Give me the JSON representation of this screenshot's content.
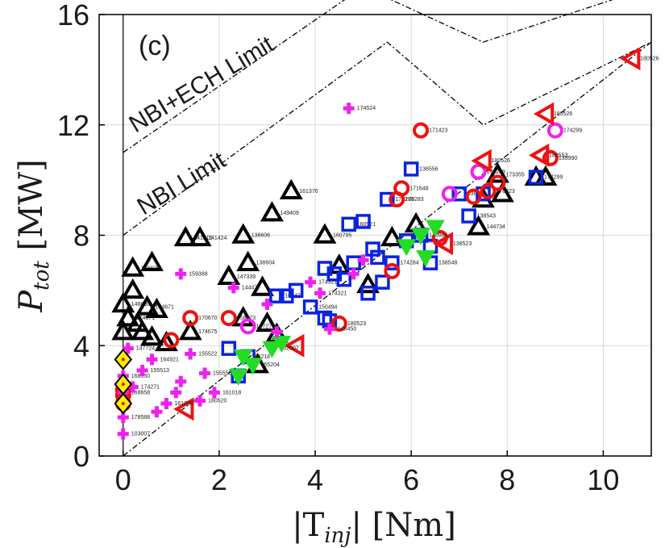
{
  "chart_data": {
    "type": "scatter",
    "panel_label": "(c)",
    "xlabel": {
      "prefix": "|T",
      "sub": "inj",
      "suffix": "| [Nm]"
    },
    "ylabel": {
      "base": "P",
      "sub": "tot",
      "suffix": " [MW]"
    },
    "xlim": [
      -0.5,
      11
    ],
    "ylim": [
      0,
      16
    ],
    "xticks": [
      "0",
      "2",
      "4",
      "6",
      "8",
      "10"
    ],
    "yticks": [
      "0",
      "4",
      "8",
      "12",
      "16"
    ],
    "grid": true,
    "colors": {
      "black": "#000000",
      "blue": "#0a22e0",
      "red": "#ee1111",
      "magenta": "#ee22ee",
      "green": "#22dd22",
      "yellow": "#ffee00"
    },
    "limit_lines": [
      {
        "name": "NBI+ECH Limit",
        "label": "NBI+ECH Limit",
        "points": [
          [
            0,
            11
          ],
          [
            5,
            17
          ],
          [
            7.5,
            15
          ],
          [
            11,
            17
          ]
        ]
      },
      {
        "name": "NBI Limit",
        "label": "NBI Limit",
        "points": [
          [
            0,
            8
          ],
          [
            5.5,
            15
          ],
          [
            7.5,
            12
          ],
          [
            11,
            15
          ]
        ]
      },
      {
        "name": "lower bound",
        "label": "",
        "points": [
          [
            0,
            0
          ],
          [
            11,
            15
          ]
        ]
      }
    ],
    "series": [
      {
        "marker": "triangle-up",
        "color": "black",
        "points": [
          [
            0,
            5.5,
            "148830"
          ],
          [
            0.1,
            5,
            "174671"
          ],
          [
            0,
            4.5,
            ""
          ],
          [
            0.2,
            6,
            ""
          ],
          [
            0.3,
            4.8,
            ""
          ],
          [
            0.4,
            4.5,
            ""
          ],
          [
            0.2,
            6.8,
            "138606"
          ],
          [
            0.5,
            5.4,
            "174671"
          ],
          [
            0.6,
            7,
            ""
          ],
          [
            0.7,
            5.3,
            ""
          ],
          [
            0.6,
            4.3,
            ""
          ],
          [
            0.9,
            4.1,
            ""
          ],
          [
            1.4,
            4.5,
            "174675"
          ],
          [
            1.3,
            7.9,
            "141316"
          ],
          [
            1.6,
            7.9,
            "141424"
          ],
          [
            2.2,
            6.5,
            "147339"
          ],
          [
            2.5,
            8,
            "138606"
          ],
          [
            2.6,
            7,
            "138604"
          ],
          [
            2.9,
            6.1,
            ""
          ],
          [
            2.5,
            5,
            ""
          ],
          [
            3.1,
            8.8,
            "149409"
          ],
          [
            3.5,
            9.6,
            "161376"
          ],
          [
            3.2,
            4.4,
            ""
          ],
          [
            2.8,
            3.3,
            ""
          ],
          [
            3,
            4.8,
            ""
          ],
          [
            4.2,
            8,
            "160795"
          ],
          [
            5.1,
            6.2,
            ""
          ],
          [
            5.6,
            7.9,
            ""
          ],
          [
            6.1,
            8.4,
            ""
          ],
          [
            7.4,
            8.3,
            "144734"
          ],
          [
            7.8,
            10.2,
            "173355"
          ],
          [
            7.9,
            9.5,
            ""
          ],
          [
            7.5,
            9.3,
            ""
          ],
          [
            8.6,
            10.1,
            ""
          ],
          [
            8.8,
            10.1,
            ""
          ],
          [
            4.5,
            6.9,
            ""
          ]
        ]
      },
      {
        "marker": "square",
        "color": "blue",
        "points": [
          [
            2.2,
            3.9,
            ""
          ],
          [
            2.6,
            3.6,
            ""
          ],
          [
            2.4,
            2.9,
            ""
          ],
          [
            3.2,
            5.8,
            "169473"
          ],
          [
            3.6,
            6,
            ""
          ],
          [
            3.4,
            5.8,
            ""
          ],
          [
            3.9,
            5.4,
            "150494"
          ],
          [
            4.2,
            5,
            ""
          ],
          [
            4.2,
            6.8,
            ""
          ],
          [
            4.4,
            6.6,
            ""
          ],
          [
            4.6,
            6.4,
            ""
          ],
          [
            4.8,
            7,
            ""
          ],
          [
            4.7,
            8.4,
            "160921"
          ],
          [
            5,
            8.5,
            ""
          ],
          [
            5.2,
            7.5,
            ""
          ],
          [
            5.3,
            7.2,
            ""
          ],
          [
            5.6,
            7,
            "174284"
          ],
          [
            5.5,
            9.3,
            "174283"
          ],
          [
            5.9,
            7.8,
            "172456"
          ],
          [
            6.2,
            8,
            ""
          ],
          [
            6.4,
            7.6,
            ""
          ],
          [
            6.4,
            7,
            "138548"
          ],
          [
            6,
            10.4,
            "136556"
          ],
          [
            7,
            9.5,
            "136543"
          ],
          [
            7.2,
            8.7,
            "138543"
          ],
          [
            7.5,
            9.5,
            ""
          ],
          [
            8.6,
            10.1,
            "174299"
          ],
          [
            5.4,
            6.3,
            ""
          ],
          [
            5.1,
            5.9,
            ""
          ],
          [
            4.3,
            4.9,
            ""
          ]
        ]
      },
      {
        "marker": "circle",
        "color": "red",
        "points": [
          [
            0,
            1.9,
            ""
          ],
          [
            0,
            2.2,
            ""
          ],
          [
            0,
            2.4,
            ""
          ],
          [
            1,
            4.2,
            ""
          ],
          [
            1.4,
            5,
            "170670"
          ],
          [
            2.2,
            5,
            "158873"
          ],
          [
            4.5,
            4.8,
            "180523"
          ],
          [
            5.6,
            6.7,
            ""
          ],
          [
            5.8,
            9.7,
            "171648"
          ],
          [
            5.7,
            9.3,
            "176283"
          ],
          [
            6.2,
            11.8,
            "171423"
          ],
          [
            7.3,
            9.4,
            ""
          ],
          [
            7.6,
            9.6,
            "176823"
          ],
          [
            7.8,
            9.9,
            ""
          ],
          [
            8.9,
            10.8,
            "139990"
          ],
          [
            6.6,
            7.9,
            ""
          ]
        ]
      },
      {
        "marker": "circle",
        "color": "magenta",
        "points": [
          [
            2.6,
            4.7,
            "147273"
          ],
          [
            6.8,
            9.5,
            ""
          ],
          [
            7.4,
            10.3,
            "174259"
          ],
          [
            9,
            11.8,
            "174299"
          ]
        ]
      },
      {
        "marker": "triangle-left",
        "color": "red",
        "points": [
          [
            1.3,
            1.7,
            ""
          ],
          [
            3.6,
            4,
            ""
          ],
          [
            6.7,
            7.7,
            "138523"
          ],
          [
            7.5,
            10.7,
            "180526"
          ],
          [
            8.7,
            10.9,
            "180553"
          ],
          [
            8.8,
            12.4,
            "180526"
          ],
          [
            10.6,
            14.4,
            "180526"
          ]
        ]
      },
      {
        "marker": "triangle-down",
        "color": "green",
        "points": [
          [
            2.5,
            3.6,
            "136218"
          ],
          [
            2.7,
            3.3,
            "155204"
          ],
          [
            3.1,
            3.9,
            "152007"
          ],
          [
            3.3,
            4.1,
            ""
          ],
          [
            2.4,
            2.9,
            ""
          ],
          [
            6.2,
            8,
            "170864"
          ],
          [
            6.5,
            8.3,
            ""
          ],
          [
            5.9,
            7.6,
            ""
          ],
          [
            6.3,
            7.2,
            ""
          ]
        ]
      },
      {
        "marker": "plus",
        "color": "magenta",
        "points": [
          [
            0,
            0.8,
            "103007"
          ],
          [
            0,
            1.4,
            "178588"
          ],
          [
            0,
            2.3,
            "168658"
          ],
          [
            0,
            2.9,
            "168550"
          ],
          [
            0.1,
            3.9,
            "147724"
          ],
          [
            0.2,
            2.5,
            "174271"
          ],
          [
            0.4,
            3.1,
            "155513"
          ],
          [
            0.6,
            3.5,
            "164921"
          ],
          [
            0.7,
            1.6,
            ""
          ],
          [
            0.9,
            1.9,
            "161083"
          ],
          [
            1.1,
            2.3,
            ""
          ],
          [
            1.2,
            2.7,
            ""
          ],
          [
            1.4,
            3.7,
            "155522"
          ],
          [
            1.7,
            3,
            "155550"
          ],
          [
            1.9,
            2.3,
            "161018"
          ],
          [
            1.2,
            6.6,
            "159388"
          ],
          [
            2.3,
            6.1,
            "144477"
          ],
          [
            3,
            5.5,
            ""
          ],
          [
            3.9,
            6.3,
            "174321"
          ],
          [
            4.1,
            5.9,
            "174321"
          ],
          [
            4.3,
            4.6,
            "146450"
          ],
          [
            4.7,
            12.6,
            "174524"
          ],
          [
            4.8,
            6.6,
            ""
          ],
          [
            5,
            7.1,
            ""
          ],
          [
            1.6,
            2,
            "180520"
          ],
          [
            3.2,
            4.5,
            ""
          ]
        ]
      },
      {
        "marker": "diamond",
        "color": "yellow",
        "points": [
          [
            0,
            1.9,
            ""
          ],
          [
            0,
            2.6,
            ""
          ],
          [
            0,
            3.5,
            ""
          ]
        ]
      }
    ],
    "annotations": [
      "NBI+ECH Limit",
      "NBI Limit"
    ]
  }
}
